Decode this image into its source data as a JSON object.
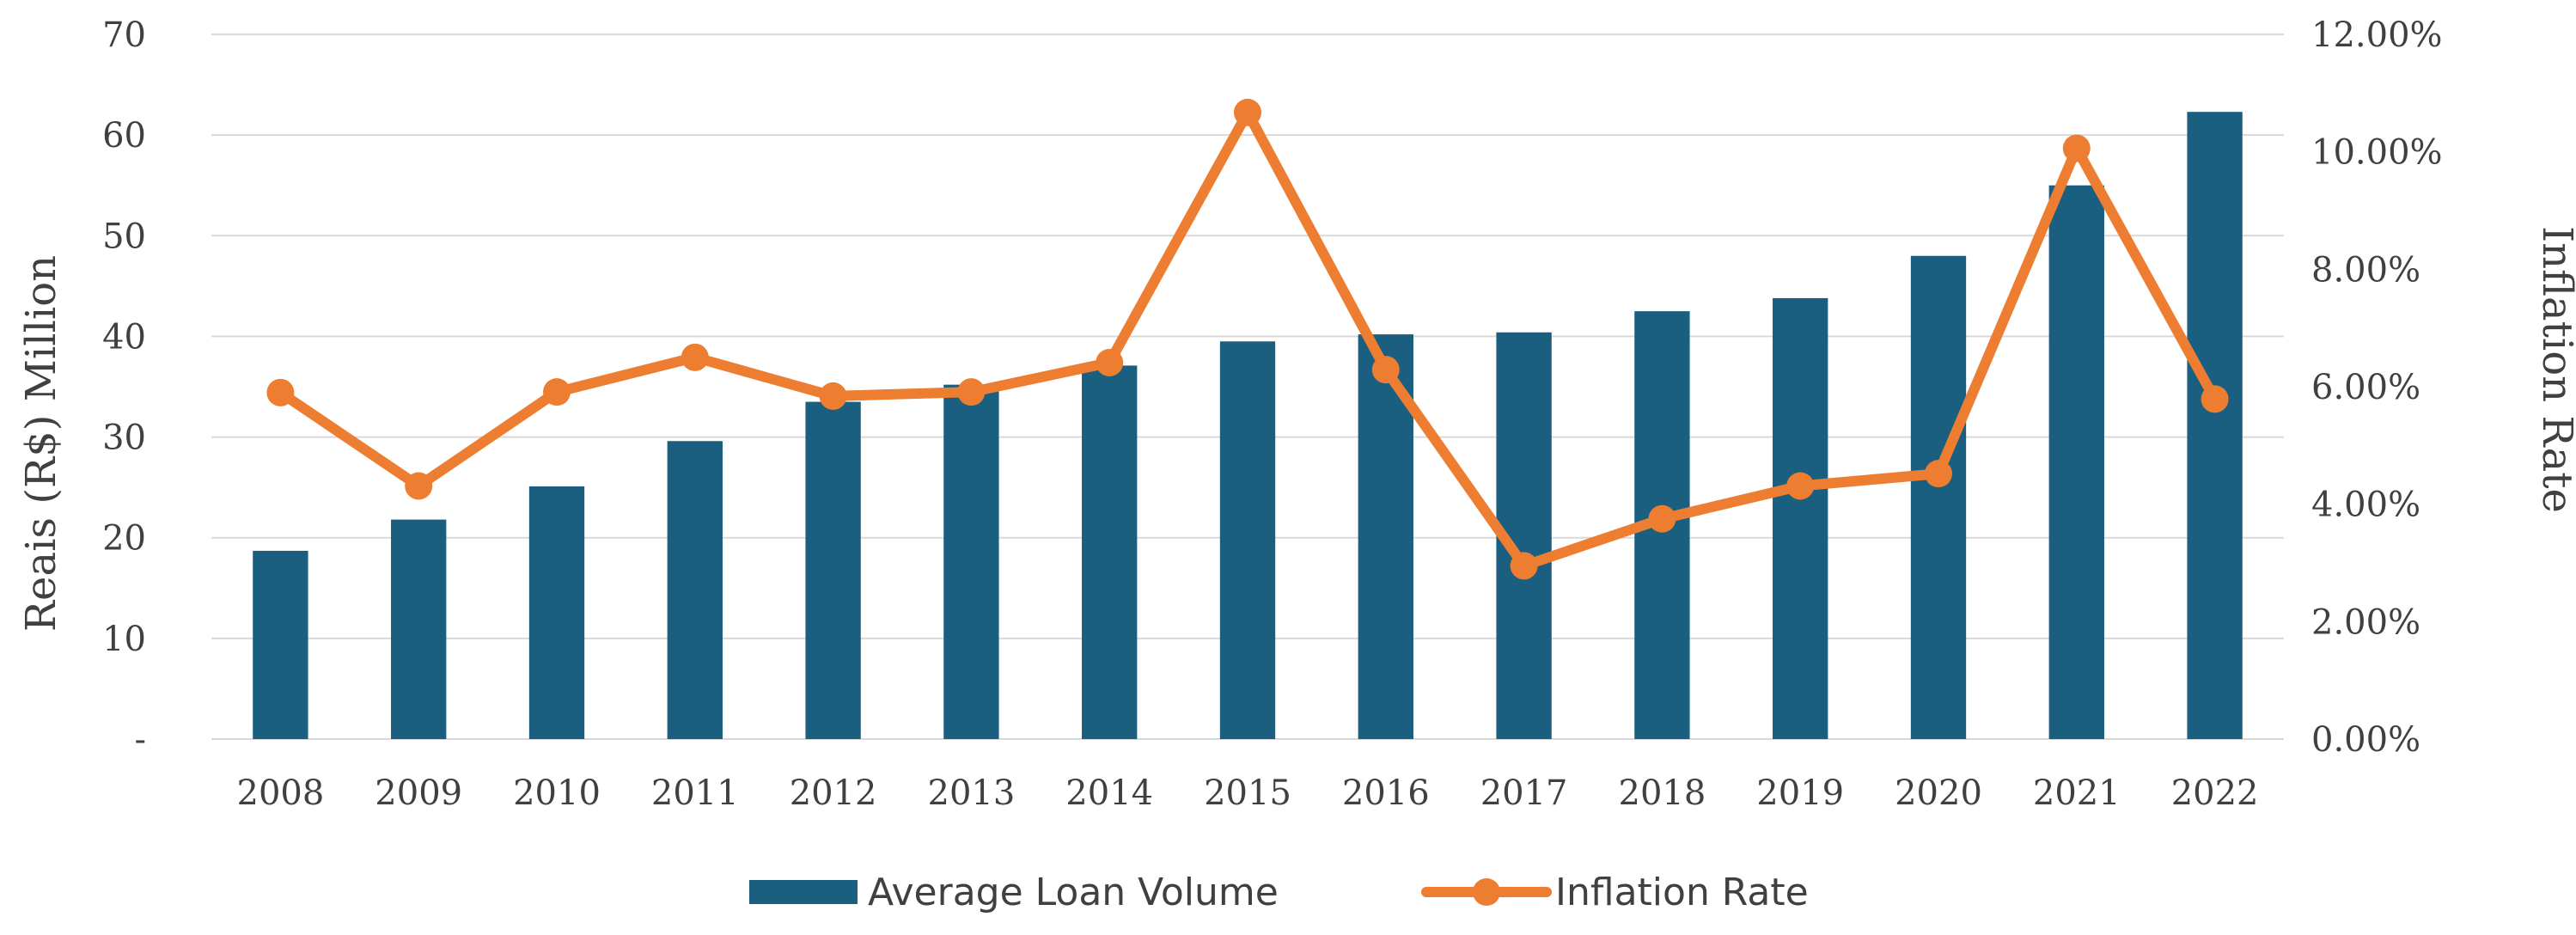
{
  "chart_data": {
    "type": "bar",
    "title": "",
    "categories": [
      "2008",
      "2009",
      "2010",
      "2011",
      "2012",
      "2013",
      "2014",
      "2015",
      "2016",
      "2017",
      "2018",
      "2019",
      "2020",
      "2021",
      "2022"
    ],
    "series": [
      {
        "name": "Average Loan Volume",
        "type": "bar",
        "axis": "left",
        "color": "#1a5e80",
        "values": [
          18.7,
          21.8,
          25.1,
          29.6,
          33.5,
          35.2,
          37.1,
          39.5,
          40.2,
          40.4,
          42.5,
          43.8,
          48.0,
          55.0,
          62.3
        ]
      },
      {
        "name": "Inflation Rate",
        "type": "line",
        "axis": "right",
        "color": "#ed7d31",
        "values": [
          5.9,
          4.31,
          5.91,
          6.5,
          5.84,
          5.91,
          6.41,
          10.67,
          6.29,
          2.95,
          3.75,
          4.31,
          4.52,
          10.06,
          5.79
        ]
      }
    ],
    "ylabel": "Reais (R$) Million",
    "ylabel_right": "Inflation Rate",
    "ylim": [
      0,
      70
    ],
    "ylim_right": [
      0,
      12
    ],
    "y_ticks": [
      "-",
      "10",
      "20",
      "30",
      "40",
      "50",
      "60",
      "70"
    ],
    "y_ticks_right": [
      "0.00%",
      "2.00%",
      "4.00%",
      "6.00%",
      "8.00%",
      "10.00%",
      "12.00%"
    ],
    "grid": true,
    "legend": "bottom"
  }
}
